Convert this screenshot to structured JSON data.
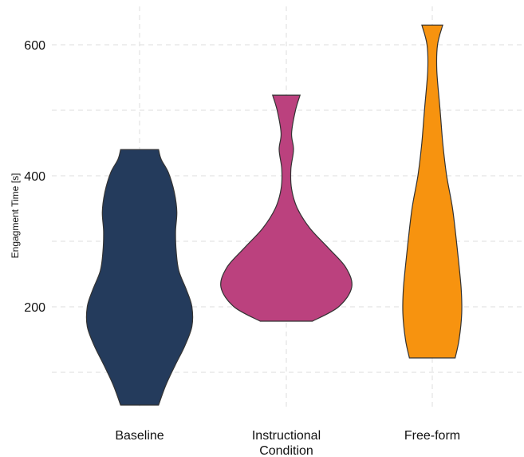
{
  "chart_data": {
    "type": "violin",
    "title": "",
    "xlabel": "Condition",
    "ylabel": "Engagment Time [s]",
    "ylim": [
      0,
      650
    ],
    "yticks": [
      200,
      400,
      600
    ],
    "grid": true,
    "legend": "none",
    "categories": [
      "Baseline",
      "Instructional",
      "Free-form"
    ],
    "series": [
      {
        "category": "Baseline",
        "color": "#243b5c",
        "min": 50,
        "max": 440,
        "density": [
          {
            "y": 50,
            "w": 0.29
          },
          {
            "y": 80,
            "w": 0.4
          },
          {
            "y": 110,
            "w": 0.54
          },
          {
            "y": 140,
            "w": 0.69
          },
          {
            "y": 170,
            "w": 0.8
          },
          {
            "y": 200,
            "w": 0.8
          },
          {
            "y": 225,
            "w": 0.72
          },
          {
            "y": 255,
            "w": 0.6
          },
          {
            "y": 285,
            "w": 0.56
          },
          {
            "y": 315,
            "w": 0.55
          },
          {
            "y": 345,
            "w": 0.57
          },
          {
            "y": 375,
            "w": 0.53
          },
          {
            "y": 405,
            "w": 0.44
          },
          {
            "y": 425,
            "w": 0.33
          },
          {
            "y": 440,
            "w": 0.29
          }
        ]
      },
      {
        "category": "Instructional",
        "color": "#bb417e",
        "min": 178,
        "max": 523,
        "density": [
          {
            "y": 178,
            "w": 0.4
          },
          {
            "y": 200,
            "w": 0.8
          },
          {
            "y": 230,
            "w": 1.0
          },
          {
            "y": 260,
            "w": 0.91
          },
          {
            "y": 290,
            "w": 0.64
          },
          {
            "y": 320,
            "w": 0.36
          },
          {
            "y": 350,
            "w": 0.17
          },
          {
            "y": 380,
            "w": 0.08
          },
          {
            "y": 410,
            "w": 0.07
          },
          {
            "y": 440,
            "w": 0.11
          },
          {
            "y": 465,
            "w": 0.08
          },
          {
            "y": 500,
            "w": 0.14
          },
          {
            "y": 523,
            "w": 0.21
          }
        ]
      },
      {
        "category": "Free-form",
        "color": "#f7930f",
        "min": 122,
        "max": 630,
        "density": [
          {
            "y": 122,
            "w": 0.35
          },
          {
            "y": 150,
            "w": 0.41
          },
          {
            "y": 190,
            "w": 0.45
          },
          {
            "y": 230,
            "w": 0.44
          },
          {
            "y": 290,
            "w": 0.38
          },
          {
            "y": 350,
            "w": 0.31
          },
          {
            "y": 400,
            "w": 0.22
          },
          {
            "y": 450,
            "w": 0.16
          },
          {
            "y": 500,
            "w": 0.12
          },
          {
            "y": 560,
            "w": 0.07
          },
          {
            "y": 600,
            "w": 0.08
          },
          {
            "y": 630,
            "w": 0.16
          }
        ]
      }
    ]
  }
}
